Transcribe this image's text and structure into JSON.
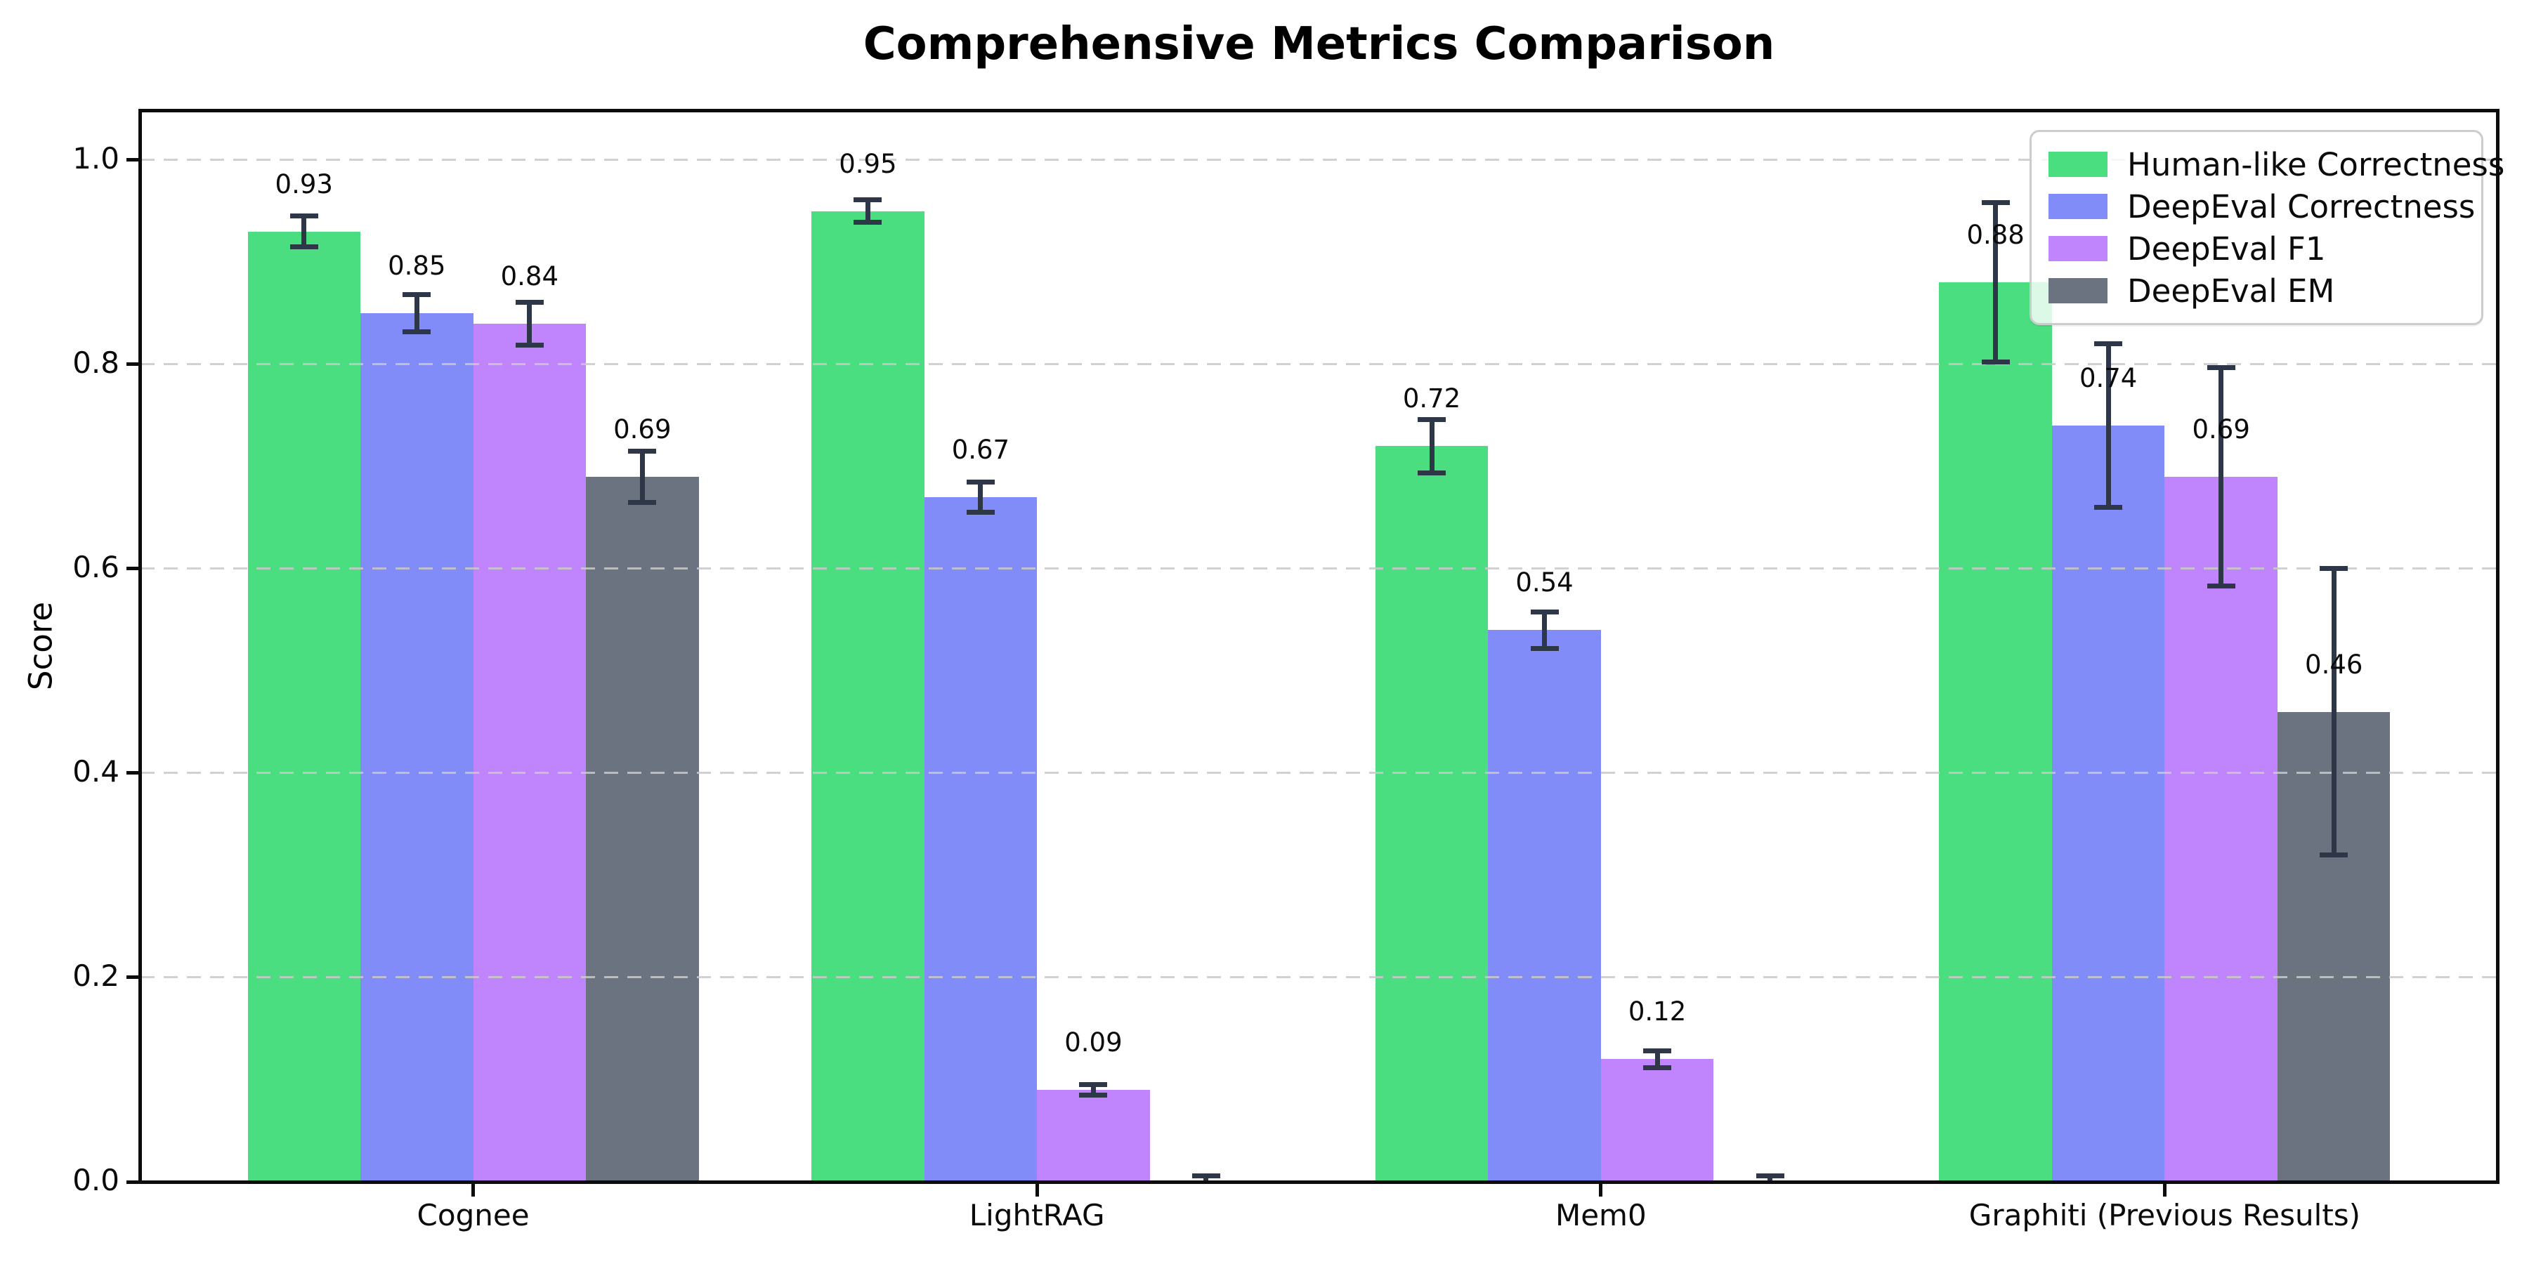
{
  "figure": {
    "title": "Comprehensive Metrics Comparison",
    "background_color": "#ffffff"
  },
  "chart_data": {
    "type": "bar",
    "title": "Comprehensive Metrics Comparison",
    "xlabel": "",
    "ylabel": "Score",
    "categories": [
      "Cognee",
      "LightRAG",
      "Mem0",
      "Graphiti (Previous Results)"
    ],
    "series": [
      {
        "name": "Human-like Correctness",
        "color": "#4ade80",
        "values": [
          0.93,
          0.95,
          0.72,
          0.88
        ],
        "errors": [
          0.015,
          0.011,
          0.026,
          0.078
        ],
        "labels": [
          "0.93",
          "0.95",
          "0.72",
          "0.88"
        ]
      },
      {
        "name": "DeepEval Correctness",
        "color": "#818cf8",
        "values": [
          0.85,
          0.67,
          0.54,
          0.74
        ],
        "errors": [
          0.018,
          0.015,
          0.018,
          0.08
        ],
        "labels": [
          "0.85",
          "0.67",
          "0.54",
          "0.74"
        ]
      },
      {
        "name": "DeepEval F1",
        "color": "#c084fc",
        "values": [
          0.84,
          0.09,
          0.12,
          0.69
        ],
        "errors": [
          0.021,
          0.005,
          0.008,
          0.107
        ],
        "labels": [
          "0.84",
          "0.09",
          "0.12",
          "0.69"
        ]
      },
      {
        "name": "DeepEval EM",
        "color": "#6b7280",
        "values": [
          0.69,
          0.0,
          0.0,
          0.46
        ],
        "errors": [
          0.025,
          0.006,
          0.006,
          0.14
        ],
        "labels": [
          "0.69",
          null,
          null,
          "0.46"
        ]
      }
    ],
    "yticks": {
      "values": [
        0.0,
        0.2,
        0.4,
        0.6,
        0.8,
        1.0
      ],
      "labels": [
        "0.0",
        "0.2",
        "0.4",
        "0.6",
        "0.8",
        "1.0"
      ]
    },
    "ylim": [
      0,
      1.048
    ],
    "grid": {
      "axis": "y",
      "style": "dashed",
      "color": "#c9c9c9",
      "on_top_of_bars": true
    },
    "legend": {
      "position": "upper right",
      "entries": [
        "Human-like Correctness",
        "DeepEval Correctness",
        "DeepEval F1",
        "DeepEval EM"
      ]
    },
    "error_bar_color": "#2d3748",
    "value_label_decimals": 2
  }
}
